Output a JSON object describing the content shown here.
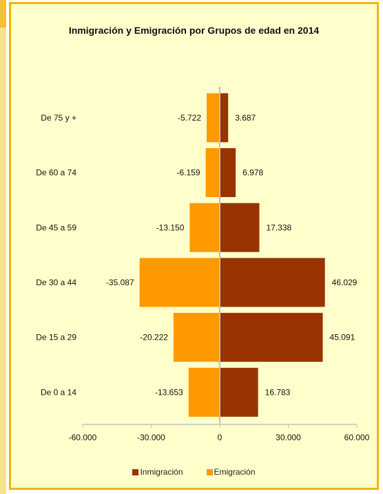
{
  "colors": {
    "immigration": "#993300",
    "emigration": "#ff9900",
    "background": "#ffffcc",
    "border": "#f2b600",
    "axis": "#c0c0c0"
  },
  "chart_data": {
    "type": "bar",
    "orientation": "horizontal",
    "title": "Inmigración y Emigración por Grupos de edad en 2014",
    "categories": [
      "De 75 y +",
      "De 60 a 74",
      "De 45 a 59",
      "De 30 a 44",
      "De 15 a 29",
      "De 0 a 14"
    ],
    "series": [
      {
        "name": "Inmigración",
        "values": [
          3687,
          6978,
          17338,
          46029,
          45091,
          16783
        ],
        "labels": [
          "3.687",
          "6.978",
          "17.338",
          "46.029",
          "45.091",
          "16.783"
        ]
      },
      {
        "name": "Emigración",
        "values": [
          -5722,
          -6159,
          -13150,
          -35087,
          -20222,
          -13653
        ],
        "labels": [
          "-5.722",
          "-6.159",
          "-13.150",
          "-35.087",
          "-20.222",
          "-13.653"
        ]
      }
    ],
    "xlim": [
      -60000,
      60000
    ],
    "xticks": [
      -60000,
      -30000,
      0,
      30000,
      60000
    ],
    "xtick_labels": [
      "-60.000",
      "-30.000",
      "0",
      "30.000",
      "60.000"
    ],
    "grid": false,
    "legend_position": "bottom"
  }
}
